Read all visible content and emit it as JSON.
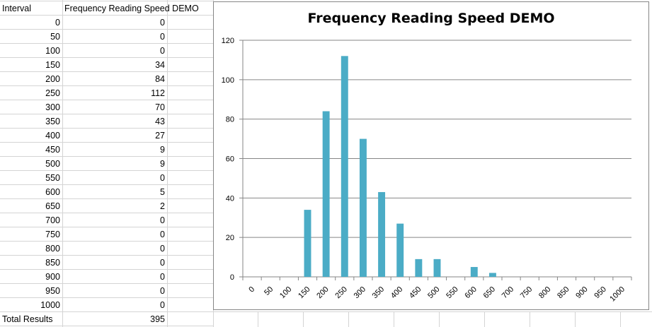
{
  "table": {
    "header_interval": "Interval",
    "header_frequency": "Frequency Reading Speed DEMO",
    "rows": [
      {
        "interval": "0",
        "frequency": "0"
      },
      {
        "interval": "50",
        "frequency": "0"
      },
      {
        "interval": "100",
        "frequency": "0"
      },
      {
        "interval": "150",
        "frequency": "34"
      },
      {
        "interval": "200",
        "frequency": "84"
      },
      {
        "interval": "250",
        "frequency": "112"
      },
      {
        "interval": "300",
        "frequency": "70"
      },
      {
        "interval": "350",
        "frequency": "43"
      },
      {
        "interval": "400",
        "frequency": "27"
      },
      {
        "interval": "450",
        "frequency": "9"
      },
      {
        "interval": "500",
        "frequency": "9"
      },
      {
        "interval": "550",
        "frequency": "0"
      },
      {
        "interval": "600",
        "frequency": "5"
      },
      {
        "interval": "650",
        "frequency": "2"
      },
      {
        "interval": "700",
        "frequency": "0"
      },
      {
        "interval": "750",
        "frequency": "0"
      },
      {
        "interval": "800",
        "frequency": "0"
      },
      {
        "interval": "850",
        "frequency": "0"
      },
      {
        "interval": "900",
        "frequency": "0"
      },
      {
        "interval": "950",
        "frequency": "0"
      },
      {
        "interval": "1000",
        "frequency": "0"
      }
    ],
    "total_label": "Total Results",
    "total_value": "395"
  },
  "chart_data": {
    "type": "bar",
    "title": "Frequency Reading Speed DEMO",
    "categories": [
      "0",
      "50",
      "100",
      "150",
      "200",
      "250",
      "300",
      "350",
      "400",
      "450",
      "500",
      "550",
      "600",
      "650",
      "700",
      "750",
      "800",
      "850",
      "900",
      "950",
      "1000"
    ],
    "values": [
      0,
      0,
      0,
      34,
      84,
      112,
      70,
      43,
      27,
      9,
      9,
      0,
      5,
      2,
      0,
      0,
      0,
      0,
      0,
      0,
      0
    ],
    "xlabel": "",
    "ylabel": "",
    "ylim": [
      0,
      120
    ],
    "yticks": [
      0,
      20,
      40,
      60,
      80,
      100,
      120
    ],
    "grid": true,
    "legend": "none",
    "bar_color": "#4bacc6",
    "gridline_color": "#868686"
  }
}
